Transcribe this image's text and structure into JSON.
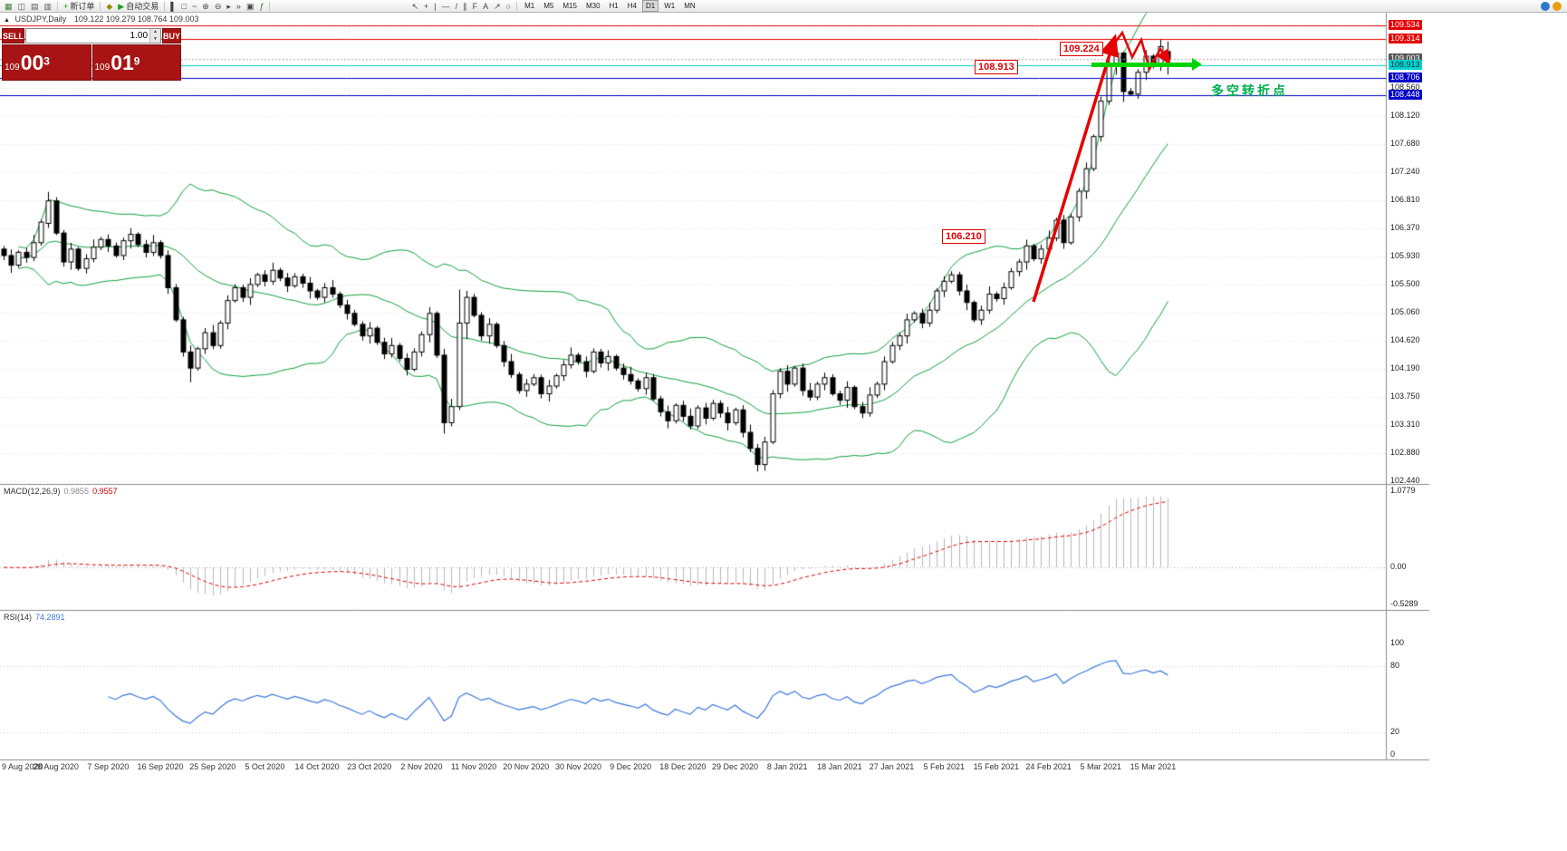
{
  "colors": {
    "bollinger": "#0fa03c",
    "bull": "#ffffff",
    "bear": "#000000",
    "candle_outline": "#000000",
    "macd_hist": "#b9b9b9",
    "macd_signal": "#e00000",
    "rsi_line": "#3c78dc",
    "grid": "#dcdcdc",
    "accent_red": "#e60000",
    "accent_green": "#00d400",
    "annotation_green": "#00b050",
    "panel_red": "#a81414"
  },
  "icons": {
    "spinner_up": "▲",
    "spinner_down": "▼"
  },
  "toolbar": {
    "groups": [
      {
        "items": [
          {
            "name": "new-chart-icon",
            "glyph": "▦",
            "color": "#3a7d3a"
          },
          {
            "name": "profiles-icon",
            "glyph": "◫",
            "color": "#555555"
          },
          {
            "name": "market-watch-icon",
            "glyph": "▤",
            "color": "#555555"
          },
          {
            "name": "data-window-icon",
            "glyph": "▥",
            "color": "#555555"
          }
        ]
      },
      {
        "items": [
          {
            "name": "new-order-button",
            "glyph": "+",
            "color": "#18a018",
            "label": "新订单"
          }
        ]
      },
      {
        "items": [
          {
            "name": "metaeditor-icon",
            "glyph": "◆",
            "color": "#998800"
          },
          {
            "name": "autotrading-button",
            "glyph": "▶",
            "color": "#18a018",
            "label": "自动交易"
          }
        ]
      },
      {
        "items": [
          {
            "name": "bar-chart-icon",
            "glyph": "▌",
            "color": "#444444"
          },
          {
            "name": "candlestick-chart-icon",
            "glyph": "□",
            "color": "#444444"
          },
          {
            "name": "line-chart-icon",
            "glyph": "~",
            "color": "#444444"
          },
          {
            "name": "zoom-in-icon",
            "glyph": "⊕",
            "color": "#444444"
          },
          {
            "name": "zoom-out-icon",
            "glyph": "⊖",
            "color": "#444444"
          },
          {
            "name": "auto-scroll-icon",
            "glyph": "▸",
            "color": "#444444"
          },
          {
            "name": "chart-shift-icon",
            "glyph": "»",
            "color": "#444444"
          },
          {
            "name": "tile-windows-icon",
            "glyph": "▣",
            "color": "#444444"
          },
          {
            "name": "indicators-icon",
            "glyph": "ƒ",
            "color": "#1a7d1a"
          }
        ]
      },
      {
        "spacer": true,
        "items": [
          {
            "name": "cursor-icon",
            "glyph": "↖",
            "color": "#444444"
          },
          {
            "name": "crosshair-icon",
            "glyph": "+",
            "color": "#444444"
          },
          {
            "name": "vertical-line-icon",
            "glyph": "|",
            "color": "#444444"
          },
          {
            "name": "horizontal-line-icon",
            "glyph": "—",
            "color": "#444444"
          },
          {
            "name": "trendline-icon",
            "glyph": "/",
            "color": "#444444"
          },
          {
            "name": "channel-icon",
            "glyph": "∥",
            "color": "#444444"
          },
          {
            "name": "fibonacci-icon",
            "glyph": "F",
            "color": "#444444"
          },
          {
            "name": "text-icon",
            "glyph": "A",
            "color": "#444444"
          },
          {
            "name": "arrows-icon",
            "glyph": "↗",
            "color": "#444444"
          },
          {
            "name": "shapes-icon",
            "glyph": "○",
            "color": "#444444"
          }
        ]
      }
    ],
    "timeframes": [
      "M1",
      "M5",
      "M15",
      "M30",
      "H1",
      "H4",
      "D1",
      "W1",
      "MN"
    ],
    "active_timeframe": "D1"
  },
  "chart": {
    "icon": "▲",
    "title": "USDJPY,Daily",
    "ohlc": "109.122 109.279 108.764 109.003"
  },
  "trade_panel": {
    "sell_label": "SELL",
    "buy_label": "BUY",
    "volume": "1.00",
    "sell_price": {
      "prefix": "109",
      "main": "00",
      "sup": "3"
    },
    "buy_price": {
      "prefix": "109",
      "main": "01",
      "sup": "9"
    }
  },
  "annotations": {
    "high_label": "109.224",
    "support_label": "108.913",
    "breakout_label": "106.210",
    "turning_point_text": "多空转折点"
  },
  "price_axis": {
    "line_labels": [
      {
        "text": "109.534",
        "price": 109.534,
        "bg": "#e60000",
        "fg": "#ffffff"
      },
      {
        "text": "109.314",
        "price": 109.314,
        "bg": "#e60000",
        "fg": "#ffffff"
      },
      {
        "text": "109.003",
        "price": 109.003,
        "bg": "#555555",
        "fg": "#ffffff"
      },
      {
        "text": "108.913",
        "price": 108.913,
        "bg": "#00d2d2",
        "fg": "#003333"
      },
      {
        "text": "108.706",
        "price": 108.706,
        "bg": "#0000c8",
        "fg": "#ffffff"
      },
      {
        "text": "108.448",
        "price": 108.448,
        "bg": "#0000c8",
        "fg": "#ffffff"
      }
    ],
    "grid_labels": [
      {
        "text": "108.560",
        "price": 108.56
      },
      {
        "text": "108.120",
        "price": 108.12
      },
      {
        "text": "107.680",
        "price": 107.68
      },
      {
        "text": "107.240",
        "price": 107.24
      },
      {
        "text": "106.810",
        "price": 106.81
      },
      {
        "text": "106.370",
        "price": 106.37
      },
      {
        "text": "105.930",
        "price": 105.93
      },
      {
        "text": "105.500",
        "price": 105.5
      },
      {
        "text": "105.060",
        "price": 105.06
      },
      {
        "text": "104.620",
        "price": 104.62
      },
      {
        "text": "104.190",
        "price": 104.19
      },
      {
        "text": "103.750",
        "price": 103.75
      },
      {
        "text": "103.310",
        "price": 103.31
      },
      {
        "text": "102.880",
        "price": 102.88
      },
      {
        "text": "102.440",
        "price": 102.44
      }
    ]
  },
  "macd_panel": {
    "title": "MACD(12,26,9)",
    "value_main": "0.9855",
    "value_signal": "0.9557",
    "axis": [
      {
        "text": "1.0779",
        "value": 1.0779
      },
      {
        "text": "0.00",
        "value": 0
      },
      {
        "text": "-0.5289",
        "value": -0.5289
      }
    ]
  },
  "rsi_panel": {
    "title": "RSI(14)",
    "value": "74.2891",
    "axis": [
      {
        "text": "100",
        "value": 100
      },
      {
        "text": "80",
        "value": 80
      },
      {
        "text": "20",
        "value": 20
      },
      {
        "text": "0",
        "value": 0
      }
    ]
  },
  "date_axis": [
    "9 Aug 2020",
    "28 Aug 2020",
    "7 Sep 2020",
    "16 Sep 2020",
    "25 Sep 2020",
    "5 Oct 2020",
    "14 Oct 2020",
    "23 Oct 2020",
    "2 Nov 2020",
    "11 Nov 2020",
    "20 Nov 2020",
    "30 Nov 2020",
    "9 Dec 2020",
    "18 Dec 2020",
    "29 Dec 2020",
    "8 Jan 2021",
    "18 Jan 2021",
    "27 Jan 2021",
    "5 Feb 2021",
    "15 Feb 2021",
    "24 Feb 2021",
    "5 Mar 2021",
    "15 Mar 2021"
  ],
  "chart_data": {
    "type": "candlestick",
    "symbol": "USDJPY",
    "timeframe": "Daily",
    "ohlc_current": {
      "open": 109.122,
      "high": 109.279,
      "low": 108.764,
      "close": 109.003
    },
    "bid": 109.003,
    "ask": 109.019,
    "ylim": [
      102.41,
      109.71
    ],
    "bars_per_date_label": 7,
    "closes": [
      105.95,
      105.8,
      106.0,
      105.92,
      106.15,
      106.47,
      106.8,
      106.3,
      105.85,
      106.05,
      105.75,
      105.9,
      106.08,
      106.2,
      106.1,
      105.95,
      106.18,
      106.28,
      106.12,
      106.0,
      106.15,
      105.95,
      105.45,
      104.95,
      104.45,
      104.2,
      104.5,
      104.75,
      104.55,
      104.9,
      105.25,
      105.45,
      105.3,
      105.5,
      105.65,
      105.55,
      105.72,
      105.6,
      105.48,
      105.62,
      105.52,
      105.4,
      105.3,
      105.45,
      105.35,
      105.18,
      105.05,
      104.88,
      104.7,
      104.82,
      104.6,
      104.42,
      104.55,
      104.35,
      104.18,
      104.45,
      104.72,
      105.05,
      104.4,
      103.35,
      103.6,
      104.9,
      105.3,
      105.02,
      104.7,
      104.88,
      104.55,
      104.3,
      104.1,
      103.85,
      103.95,
      104.05,
      103.8,
      103.92,
      104.08,
      104.25,
      104.4,
      104.3,
      104.15,
      104.45,
      104.28,
      104.38,
      104.2,
      104.1,
      104.0,
      103.88,
      104.05,
      103.72,
      103.52,
      103.38,
      103.62,
      103.45,
      103.3,
      103.58,
      103.42,
      103.65,
      103.5,
      103.35,
      103.55,
      103.2,
      102.95,
      102.7,
      103.05,
      103.8,
      104.15,
      103.95,
      104.2,
      103.85,
      103.75,
      103.95,
      104.05,
      103.8,
      103.7,
      103.9,
      103.6,
      103.5,
      103.78,
      103.95,
      104.3,
      104.55,
      104.7,
      104.95,
      105.05,
      104.9,
      105.1,
      105.4,
      105.55,
      105.65,
      105.4,
      105.22,
      104.95,
      105.1,
      105.35,
      105.28,
      105.45,
      105.7,
      105.85,
      106.1,
      105.9,
      106.05,
      106.22,
      106.5,
      106.15,
      106.55,
      106.95,
      107.3,
      107.8,
      108.35,
      108.9,
      109.1,
      108.5,
      108.46,
      108.8,
      109.05,
      108.9,
      109.2,
      109.003
    ],
    "wick_pattern": [
      0.06,
      0.12,
      0.04,
      0.09,
      0.15,
      0.05,
      0.1,
      0.07
    ],
    "special_candles": {
      "6": [
        106.45,
        106.94,
        106.38,
        106.8
      ],
      "25": [
        104.45,
        104.55,
        103.98,
        104.2
      ],
      "59": [
        104.4,
        104.5,
        103.18,
        103.35
      ],
      "61": [
        103.6,
        105.42,
        103.55,
        104.9
      ],
      "62": [
        104.9,
        105.4,
        104.65,
        105.3
      ],
      "101": [
        102.95,
        103.02,
        102.59,
        102.7
      ],
      "149": [
        108.9,
        109.224,
        108.76,
        109.1
      ],
      "150": [
        109.1,
        109.12,
        108.34,
        108.5
      ],
      "155": [
        108.9,
        109.314,
        108.82,
        109.2
      ],
      "156": [
        109.122,
        109.279,
        108.764,
        109.003
      ]
    },
    "overlays": {
      "bollinger": {
        "period": 20,
        "deviation": 2
      }
    },
    "indicators": {
      "macd": {
        "fast": 12,
        "slow": 26,
        "signal": 9,
        "main": 0.9855,
        "signal_value": 0.9557
      },
      "rsi": {
        "period": 14,
        "value": 74.2891,
        "levels": [
          80,
          20
        ]
      }
    },
    "grid_prices": [
      109.44,
      109.0,
      108.56,
      108.12,
      107.68,
      107.24,
      106.81,
      106.37,
      105.93,
      105.5,
      105.06,
      104.62,
      104.19,
      103.75,
      103.31,
      102.88,
      102.44
    ],
    "hlines": [
      {
        "price": 109.534,
        "color": "#e60000",
        "w": 1
      },
      {
        "price": 109.314,
        "color": "#e60000",
        "w": 1
      },
      {
        "price": 109.003,
        "color": "#b8b8b8",
        "w": 1,
        "style": "dot"
      },
      {
        "price": 108.913,
        "color": "#00cccc",
        "w": 1
      },
      {
        "price": 108.706,
        "color": "#0000c8",
        "w": 1
      },
      {
        "price": 108.448,
        "color": "#0000c8",
        "w": 1
      }
    ]
  }
}
